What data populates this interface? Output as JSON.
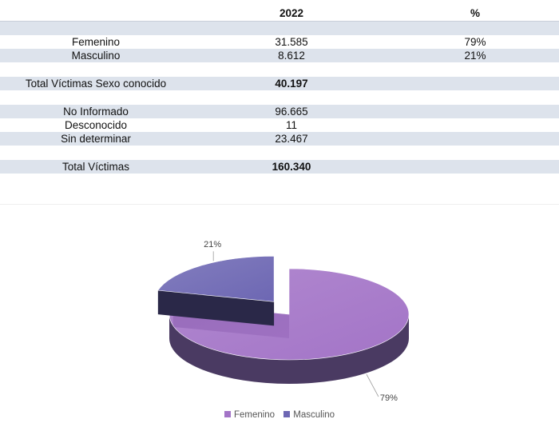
{
  "table": {
    "header": {
      "year": "2022",
      "pct": "%"
    },
    "rows": [
      {
        "label": "Femenino",
        "value": "31.585",
        "pct": "79%"
      },
      {
        "label": "Masculino",
        "value": "8.612",
        "pct": "21%"
      },
      {
        "label": "Total Víctimas Sexo conocido",
        "value": "40.197",
        "pct": ""
      },
      {
        "label": "No Informado",
        "value": "96.665",
        "pct": ""
      },
      {
        "label": "Desconocido",
        "value": "11",
        "pct": ""
      },
      {
        "label": "Sin determinar",
        "value": "23.467",
        "pct": ""
      },
      {
        "label": "Total Víctimas",
        "value": "160.340",
        "pct": ""
      }
    ]
  },
  "chart_data": {
    "type": "pie",
    "categories": [
      "Femenino",
      "Masculino"
    ],
    "values": [
      79,
      21
    ],
    "data_labels": [
      "79%",
      "21%"
    ],
    "legend_position": "bottom",
    "three_d": true,
    "exploded": true,
    "colors": {
      "Femenino": "#a374c7",
      "Masculino": "#6d67b3"
    },
    "colors_side": {
      "Femenino": "#4a3a62",
      "Masculino": "#2a2848"
    }
  }
}
